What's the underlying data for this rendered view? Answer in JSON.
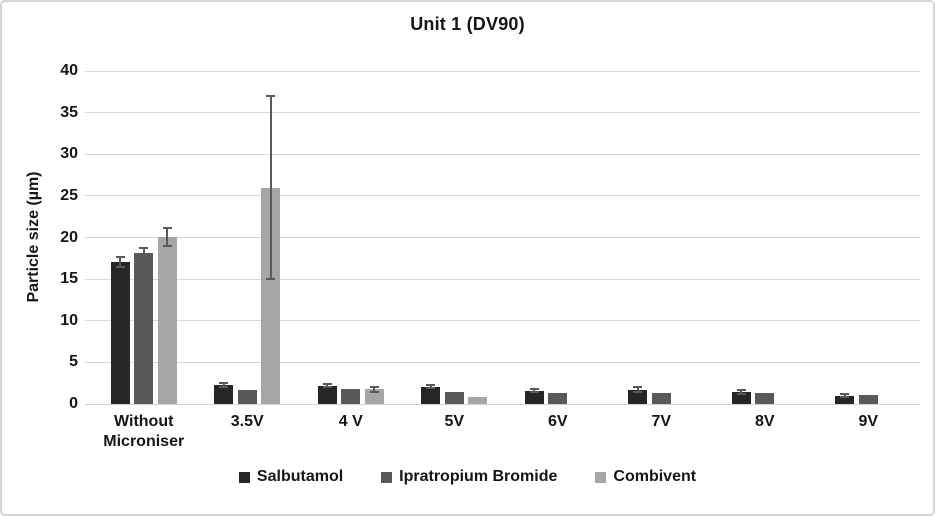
{
  "title": "Unit 1 (DV90)",
  "y_axis_label": "Particle size (µm)",
  "chart_data": {
    "type": "bar",
    "title": "Unit 1 (DV90)",
    "xlabel": "",
    "ylabel": "Particle size (µm)",
    "ylim": [
      0,
      40
    ],
    "ytick_step": 5,
    "grid": true,
    "legend_position": "bottom",
    "error_bars": true,
    "error_bar_color": "#595959",
    "gridline_color": "#d9d9d9",
    "categories": [
      "Without Microniser",
      "3.5V",
      "4 V",
      "5V",
      "6V",
      "7V",
      "8V",
      "9V"
    ],
    "series": [
      {
        "name": "Salbutamol",
        "color": "#262626",
        "values": [
          17.0,
          2.3,
          2.2,
          2.1,
          1.6,
          1.7,
          1.4,
          1.0
        ],
        "errors": [
          0.6,
          0.2,
          0.2,
          0.2,
          0.15,
          0.3,
          0.25,
          0.2
        ]
      },
      {
        "name": "Ipratropium Bromide",
        "color": "#595959",
        "values": [
          18.2,
          1.7,
          1.8,
          1.5,
          1.3,
          1.3,
          1.3,
          1.1
        ],
        "errors": [
          0.5,
          0,
          0,
          0,
          0,
          0,
          0,
          0
        ]
      },
      {
        "name": "Combivent",
        "color": "#a6a6a6",
        "values": [
          20.1,
          26.0,
          1.8,
          0.9,
          null,
          null,
          null,
          null
        ],
        "errors": [
          1.1,
          11.0,
          0.3,
          0,
          null,
          null,
          null,
          null
        ]
      }
    ]
  }
}
